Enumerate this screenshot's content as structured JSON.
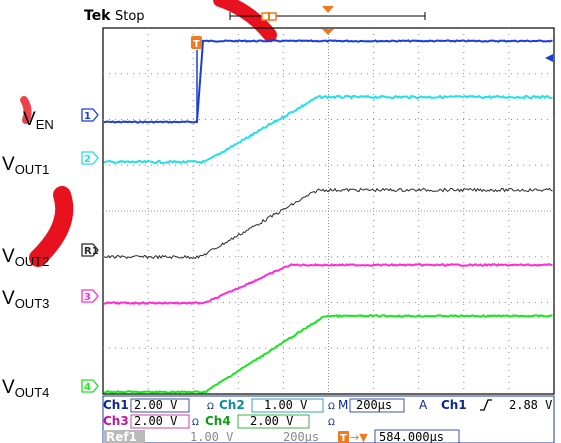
{
  "scope": {
    "brand": "Tek",
    "run_state": "Stop",
    "trigger_marker": "T",
    "colors": {
      "screen_border": "#000000",
      "grid": "#8c8c8c",
      "ch1": "#1a3fd6",
      "ch2": "#22dfe8",
      "ref1": "#2b2b2b",
      "ch3": "#ff2ad4",
      "ch4": "#18e61c",
      "trigger": "#f07a1c",
      "watermark": "#e8121f",
      "readout_text": "#0d2a8c",
      "readout_value_bg": "#ffffff"
    },
    "channel_markers": [
      {
        "id": "ch1",
        "label": "1"
      },
      {
        "id": "ch2",
        "label": "2"
      },
      {
        "id": "ref1",
        "label": "R1"
      },
      {
        "id": "ch3",
        "label": "3"
      },
      {
        "id": "ch4",
        "label": "4"
      }
    ],
    "readout": {
      "row1": {
        "ch1": "Ch1",
        "ch1_scale": "2.00 V",
        "ch2": "Ch2",
        "ch2_scale": "1.00 V",
        "timebase_prefix": "M",
        "timebase": "200µs",
        "trig_mode": "A",
        "trig_source": "Ch1",
        "trig_slope": "✓",
        "trig_level": "2.88 V"
      },
      "row2": {
        "ch3": "Ch3",
        "ch3_scale": "2.00 V",
        "ch4": "Ch4",
        "ch4_scale": "2.00 V"
      },
      "row3": {
        "ref": "Ref1",
        "ref_scale": "1.00 V",
        "ref_time": "200µs",
        "trig_pos_icon": "T→▼",
        "trig_pos": "584.000µs"
      }
    }
  },
  "labels": [
    {
      "id": "ven",
      "main": "V",
      "sub": "EN"
    },
    {
      "id": "vout1",
      "main": "V",
      "sub": "OUT1"
    },
    {
      "id": "vout2",
      "main": "V",
      "sub": "OUT2"
    },
    {
      "id": "vout3",
      "main": "V",
      "sub": "OUT3"
    },
    {
      "id": "vout4",
      "main": "V",
      "sub": "OUT4"
    }
  ]
}
